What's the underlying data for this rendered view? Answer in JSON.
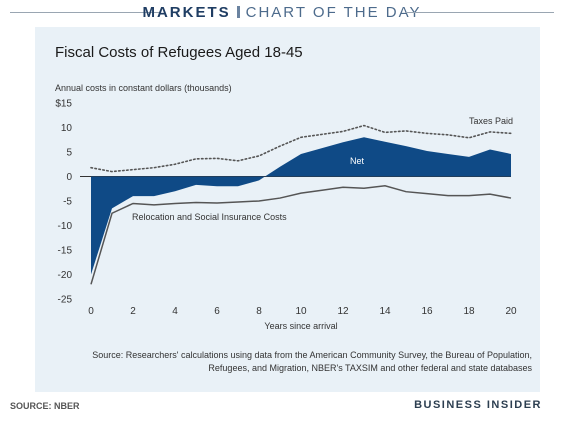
{
  "header": {
    "brand": "MARKETS",
    "section": "CHART OF THE DAY"
  },
  "footer": {
    "source": "SOURCE: NBER",
    "publisher": "BUSINESS INSIDER"
  },
  "colors": {
    "net_fill": "#0f4a86",
    "line": "#555555",
    "panel": "#e9f1f7",
    "header_brand": "#1f3d63"
  },
  "chart_data": {
    "type": "area",
    "title": "Fiscal Costs of Refugees Aged 18-45",
    "ylabel": "Annual costs in constant dollars (thousands)",
    "xlabel": "Years since arrival",
    "ylim": [
      -25,
      15
    ],
    "xlim": [
      0,
      20
    ],
    "y_ticks": [
      "$15",
      "10",
      "5",
      "0",
      "-5",
      "-10",
      "-15",
      "-20",
      "-25"
    ],
    "x_ticks": [
      "0",
      "2",
      "4",
      "6",
      "8",
      "10",
      "12",
      "14",
      "16",
      "18",
      "20"
    ],
    "x": [
      0,
      1,
      2,
      3,
      4,
      5,
      6,
      7,
      8,
      9,
      10,
      11,
      12,
      13,
      14,
      15,
      16,
      17,
      18,
      19,
      20
    ],
    "series": [
      {
        "name": "Taxes Paid",
        "style": "dotted",
        "values": [
          1.8,
          1.0,
          1.4,
          1.8,
          2.5,
          3.6,
          3.7,
          3.2,
          4.2,
          6.2,
          8.0,
          8.6,
          9.2,
          10.4,
          9.0,
          9.3,
          8.8,
          8.5,
          7.9,
          9.1,
          8.8
        ]
      },
      {
        "name": "Relocation and Social Insurance Costs",
        "style": "solid",
        "values": [
          -22.0,
          -7.5,
          -5.5,
          -5.8,
          -5.5,
          -5.3,
          -5.4,
          -5.2,
          -5.0,
          -4.4,
          -3.4,
          -2.8,
          -2.2,
          -2.4,
          -1.9,
          -3.1,
          -3.5,
          -3.9,
          -3.9,
          -3.6,
          -4.4
        ]
      },
      {
        "name": "Net",
        "style": "area",
        "values": [
          -20.0,
          -6.5,
          -4.0,
          -4.0,
          -3.0,
          -1.7,
          -2.0,
          -2.0,
          -0.8,
          2.0,
          4.6,
          5.8,
          7.0,
          8.0,
          7.1,
          6.2,
          5.2,
          4.6,
          4.0,
          5.5,
          4.6
        ]
      }
    ],
    "annotations": [
      {
        "text": "Taxes Paid"
      },
      {
        "text": "Net"
      },
      {
        "text": "Relocation and Social Insurance Costs"
      }
    ],
    "note": "Source: Researchers' calculations using data from the American Community Survey, the Bureau of Population, Refugees, and Migration, NBER's TAXSIM and other federal and state databases"
  }
}
